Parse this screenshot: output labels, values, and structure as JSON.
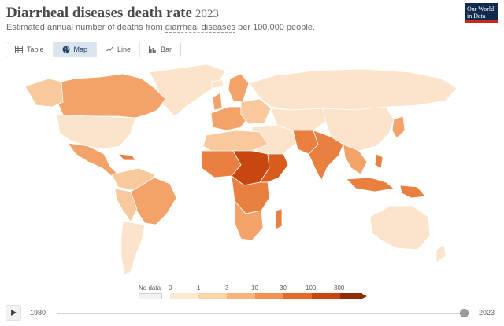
{
  "header": {
    "title": "Diarrheal diseases death rate",
    "year": "2023",
    "subtitle_start": "Estimated annual number of deaths from ",
    "subtitle_link": "diarrheal diseases",
    "subtitle_end": " per 100,000 people.",
    "logo_line1": "Our World",
    "logo_line2": "in Data"
  },
  "tabs": [
    {
      "label": "Table",
      "icon": "table-icon",
      "active": false
    },
    {
      "label": "Map",
      "icon": "globe-icon",
      "active": true
    },
    {
      "label": "Line",
      "icon": "line-chart-icon",
      "active": false
    },
    {
      "label": "Bar",
      "icon": "bar-chart-icon",
      "active": false
    }
  ],
  "legend": {
    "no_data_label": "No data",
    "no_data_color": "#f2f2f2",
    "bins": [
      "0",
      "1",
      "3",
      "10",
      "30",
      "100",
      "300"
    ],
    "colors": [
      "#fde8d2",
      "#fbd3a9",
      "#f8b47a",
      "#f2914f",
      "#e6692c",
      "#c94412",
      "#8e2a06"
    ]
  },
  "timeline": {
    "start_year": "1980",
    "end_year": "2023",
    "position_fraction": 1.0
  },
  "colors": {
    "very_low": "#fbe3cc",
    "low": "#f8c99c",
    "mid": "#f3a36a",
    "high": "#e98040",
    "very_high": "#d95b1e",
    "highest": "#c8470f",
    "no_data": "#f2f2f2"
  }
}
